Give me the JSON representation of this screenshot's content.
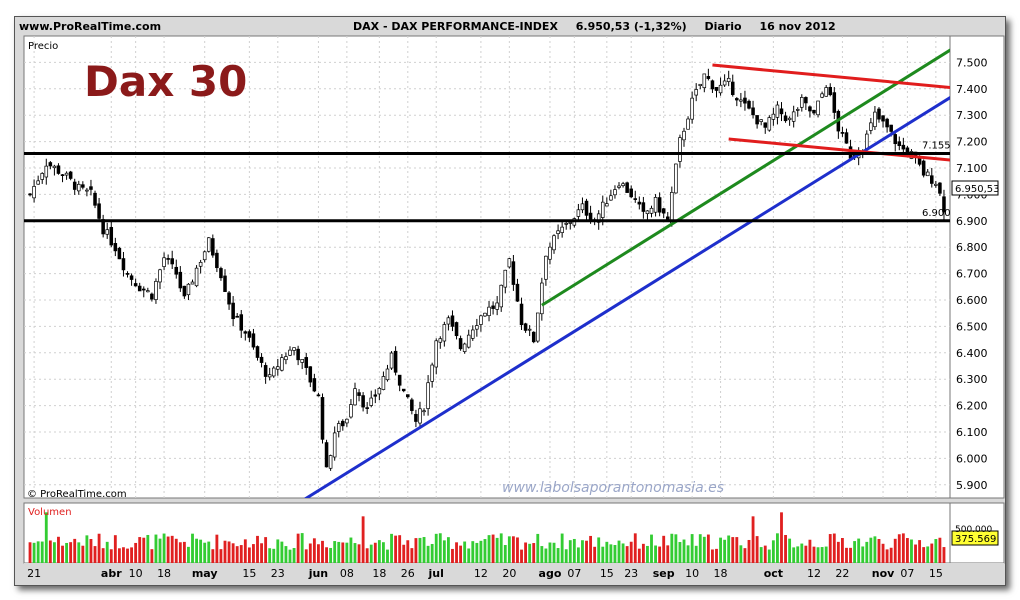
{
  "header": {
    "site": "www.ProRealTime.com",
    "symbol": "DAX - DAX PERFORMANCE-INDEX",
    "quote": "6.950,53 (-1,32%)",
    "period": "Diario",
    "date": "16 nov 2012"
  },
  "panel_labels": {
    "price": "Precio",
    "volume": "Volumen",
    "brand": "© ProRealTime.com",
    "watermark": "www.labolsaporantonomasia.es",
    "headline": "Dax 30"
  },
  "colors": {
    "frame_bg": "#d9d9d9",
    "headline": "#8b1a1a",
    "support": "#000000",
    "blue_trend": "#1e2fcc",
    "green_trend": "#1e8a1e",
    "red_channel": "#e11d1d",
    "volume_up": "#33cc33",
    "volume_down": "#e02020"
  },
  "chart_data": {
    "type": "candlestick",
    "title": "DAX - DAX PERFORMANCE-INDEX",
    "ylim": [
      5850,
      7600
    ],
    "y_ticks": [
      "7.500",
      "7.400",
      "7.300",
      "7.200",
      "7.100",
      "7.000",
      "6.900",
      "6.800",
      "6.700",
      "6.600",
      "6.500",
      "6.400",
      "6.300",
      "6.200",
      "6.100",
      "6.000",
      "5.900"
    ],
    "y_tick_values": [
      7500,
      7400,
      7300,
      7200,
      7100,
      7000,
      6900,
      6800,
      6700,
      6600,
      6500,
      6400,
      6300,
      6200,
      6100,
      6000,
      5900
    ],
    "x_labels": [
      {
        "i": 1,
        "t": "21"
      },
      {
        "i": 20,
        "t": "abr"
      },
      {
        "i": 26,
        "t": "10"
      },
      {
        "i": 33,
        "t": "18"
      },
      {
        "i": 43,
        "t": "may"
      },
      {
        "i": 54,
        "t": "15"
      },
      {
        "i": 61,
        "t": "23"
      },
      {
        "i": 71,
        "t": "jun"
      },
      {
        "i": 78,
        "t": "08"
      },
      {
        "i": 86,
        "t": "18"
      },
      {
        "i": 93,
        "t": "26"
      },
      {
        "i": 100,
        "t": "jul"
      },
      {
        "i": 111,
        "t": "12"
      },
      {
        "i": 118,
        "t": "20"
      },
      {
        "i": 128,
        "t": "ago"
      },
      {
        "i": 134,
        "t": "07"
      },
      {
        "i": 142,
        "t": "15"
      },
      {
        "i": 148,
        "t": "23"
      },
      {
        "i": 156,
        "t": "sep"
      },
      {
        "i": 163,
        "t": "10"
      },
      {
        "i": 170,
        "t": "18"
      },
      {
        "i": 183,
        "t": "oct"
      },
      {
        "i": 193,
        "t": "12"
      },
      {
        "i": 200,
        "t": "22"
      },
      {
        "i": 210,
        "t": "nov"
      },
      {
        "i": 216,
        "t": "07"
      },
      {
        "i": 223,
        "t": "15"
      }
    ],
    "close_path": [
      [
        0,
        7000
      ],
      [
        4,
        7120
      ],
      [
        8,
        7080
      ],
      [
        12,
        7020
      ],
      [
        15,
        7000
      ],
      [
        18,
        6870
      ],
      [
        21,
        6800
      ],
      [
        24,
        6700
      ],
      [
        27,
        6650
      ],
      [
        30,
        6620
      ],
      [
        33,
        6760
      ],
      [
        36,
        6700
      ],
      [
        38,
        6600
      ],
      [
        41,
        6720
      ],
      [
        44,
        6820
      ],
      [
        47,
        6700
      ],
      [
        50,
        6540
      ],
      [
        53,
        6480
      ],
      [
        56,
        6380
      ],
      [
        59,
        6300
      ],
      [
        62,
        6380
      ],
      [
        65,
        6420
      ],
      [
        68,
        6330
      ],
      [
        71,
        6230
      ],
      [
        73,
        5950
      ],
      [
        75,
        6100
      ],
      [
        78,
        6150
      ],
      [
        80,
        6280
      ],
      [
        83,
        6180
      ],
      [
        86,
        6270
      ],
      [
        89,
        6380
      ],
      [
        92,
        6250
      ],
      [
        95,
        6140
      ],
      [
        97,
        6200
      ],
      [
        100,
        6450
      ],
      [
        103,
        6520
      ],
      [
        106,
        6420
      ],
      [
        109,
        6500
      ],
      [
        112,
        6560
      ],
      [
        115,
        6580
      ],
      [
        118,
        6750
      ],
      [
        121,
        6520
      ],
      [
        124,
        6450
      ],
      [
        127,
        6780
      ],
      [
        130,
        6850
      ],
      [
        133,
        6900
      ],
      [
        136,
        6950
      ],
      [
        139,
        6900
      ],
      [
        142,
        6980
      ],
      [
        145,
        7050
      ],
      [
        148,
        7000
      ],
      [
        151,
        6920
      ],
      [
        154,
        6970
      ],
      [
        157,
        6900
      ],
      [
        160,
        7200
      ],
      [
        163,
        7350
      ],
      [
        166,
        7450
      ],
      [
        169,
        7400
      ],
      [
        172,
        7420
      ],
      [
        175,
        7350
      ],
      [
        178,
        7300
      ],
      [
        181,
        7250
      ],
      [
        184,
        7320
      ],
      [
        187,
        7280
      ],
      [
        190,
        7350
      ],
      [
        193,
        7300
      ],
      [
        196,
        7420
      ],
      [
        199,
        7250
      ],
      [
        202,
        7150
      ],
      [
        205,
        7180
      ],
      [
        208,
        7300
      ],
      [
        211,
        7250
      ],
      [
        214,
        7180
      ],
      [
        217,
        7150
      ],
      [
        220,
        7080
      ],
      [
        223,
        7050
      ],
      [
        225,
        6950
      ]
    ],
    "candle_count": 226,
    "volume_ylim": [
      0,
      900000
    ],
    "volume_level_label": "375.569",
    "volume_tick": "500.000",
    "horizontal_lines": [
      {
        "value": 7155,
        "label": "7.155"
      },
      {
        "value": 6900,
        "label": "6.900"
      }
    ],
    "last_value_label": "6.950,53",
    "trendlines": [
      {
        "name": "blue",
        "color": "#1e2fcc",
        "p1": [
          66,
          5830
        ],
        "p2": [
          230,
          7400
        ]
      },
      {
        "name": "green",
        "color": "#1e8a1e",
        "p1": [
          126,
          6580
        ],
        "p2": [
          230,
          7580
        ]
      },
      {
        "name": "red-top",
        "color": "#e11d1d",
        "p1": [
          168,
          7490
        ],
        "p2": [
          230,
          7400
        ]
      },
      {
        "name": "red-bottom",
        "color": "#e11d1d",
        "p1": [
          172,
          7210
        ],
        "p2": [
          230,
          7125
        ]
      }
    ]
  }
}
